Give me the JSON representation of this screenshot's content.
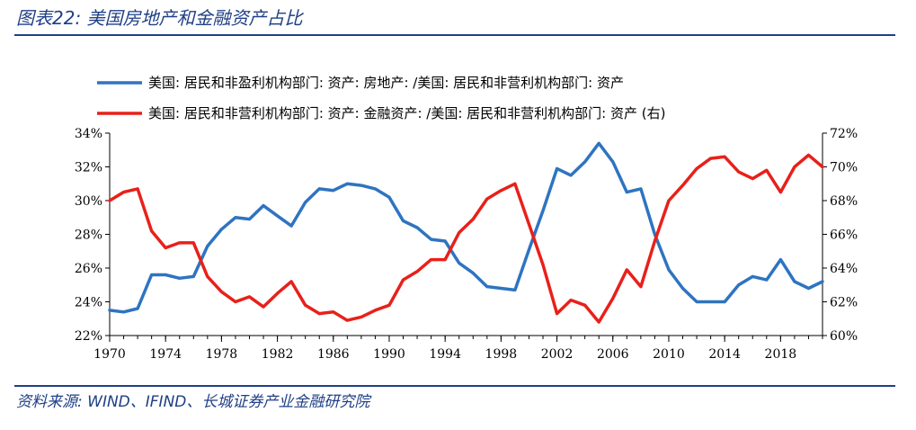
{
  "figure": {
    "title": "图表22:  美国房地产和金融资产占比",
    "source": "资料来源: WIND、IFIND、长城证券产业金融研究院"
  },
  "chart_data": {
    "type": "line",
    "x": [
      1970,
      1971,
      1972,
      1973,
      1974,
      1975,
      1976,
      1977,
      1978,
      1979,
      1980,
      1981,
      1982,
      1983,
      1984,
      1985,
      1986,
      1987,
      1988,
      1989,
      1990,
      1991,
      1992,
      1993,
      1994,
      1995,
      1996,
      1997,
      1998,
      1999,
      2000,
      2001,
      2002,
      2003,
      2004,
      2005,
      2006,
      2007,
      2008,
      2009,
      2010,
      2011,
      2012,
      2013,
      2014,
      2015,
      2016,
      2017,
      2018,
      2019,
      2020,
      2021
    ],
    "x_ticks": [
      1970,
      1974,
      1978,
      1982,
      1986,
      1990,
      1994,
      1998,
      2002,
      2006,
      2010,
      2014,
      2018
    ],
    "xlim": [
      1970,
      2021
    ],
    "left_axis": {
      "ylim": [
        22,
        34
      ],
      "ticks": [
        "22%",
        "24%",
        "26%",
        "28%",
        "30%",
        "32%",
        "34%"
      ],
      "tick_values": [
        22,
        24,
        26,
        28,
        30,
        32,
        34
      ]
    },
    "right_axis": {
      "ylim": [
        60,
        72
      ],
      "ticks": [
        "60%",
        "62%",
        "64%",
        "66%",
        "68%",
        "70%",
        "72%"
      ],
      "tick_values": [
        60,
        62,
        64,
        66,
        68,
        70,
        72
      ]
    },
    "series": [
      {
        "name": "美国: 居民和非盈利机构部门:  资产:  房地产: /美国: 居民和非营利机构部门: 资产",
        "axis": "left",
        "color": "#2e74c0",
        "values": [
          23.5,
          23.4,
          23.6,
          25.6,
          25.6,
          25.4,
          25.5,
          27.3,
          28.3,
          29.0,
          28.9,
          29.7,
          29.1,
          28.5,
          29.9,
          30.7,
          30.6,
          31.0,
          30.9,
          30.7,
          30.2,
          28.8,
          28.4,
          27.7,
          27.6,
          26.3,
          25.7,
          24.9,
          24.8,
          24.7,
          27.1,
          29.4,
          31.9,
          31.5,
          32.3,
          33.4,
          32.3,
          30.5,
          30.7,
          28.0,
          25.9,
          24.8,
          24.0,
          24.0,
          24.0,
          25.0,
          25.5,
          25.3,
          26.5,
          25.2,
          24.8,
          25.2
        ]
      },
      {
        "name": "美国: 居民和非营利机构部门: 资产: 金融资产: /美国: 居民和非营利机构部门: 资产 (右)",
        "axis": "right",
        "color": "#e8201a",
        "values": [
          68.0,
          68.5,
          68.7,
          66.2,
          65.2,
          65.5,
          65.5,
          63.5,
          62.6,
          62.0,
          62.3,
          61.7,
          62.5,
          63.2,
          61.8,
          61.3,
          61.4,
          60.9,
          61.1,
          61.5,
          61.8,
          63.3,
          63.8,
          64.5,
          64.5,
          66.1,
          66.9,
          68.1,
          68.6,
          69.0,
          66.6,
          64.2,
          61.3,
          62.1,
          61.8,
          60.8,
          62.2,
          63.9,
          62.9,
          65.6,
          68.0,
          68.9,
          69.9,
          70.5,
          70.6,
          69.7,
          69.3,
          69.8,
          68.5,
          70.0,
          70.7,
          70.0
        ]
      }
    ]
  }
}
